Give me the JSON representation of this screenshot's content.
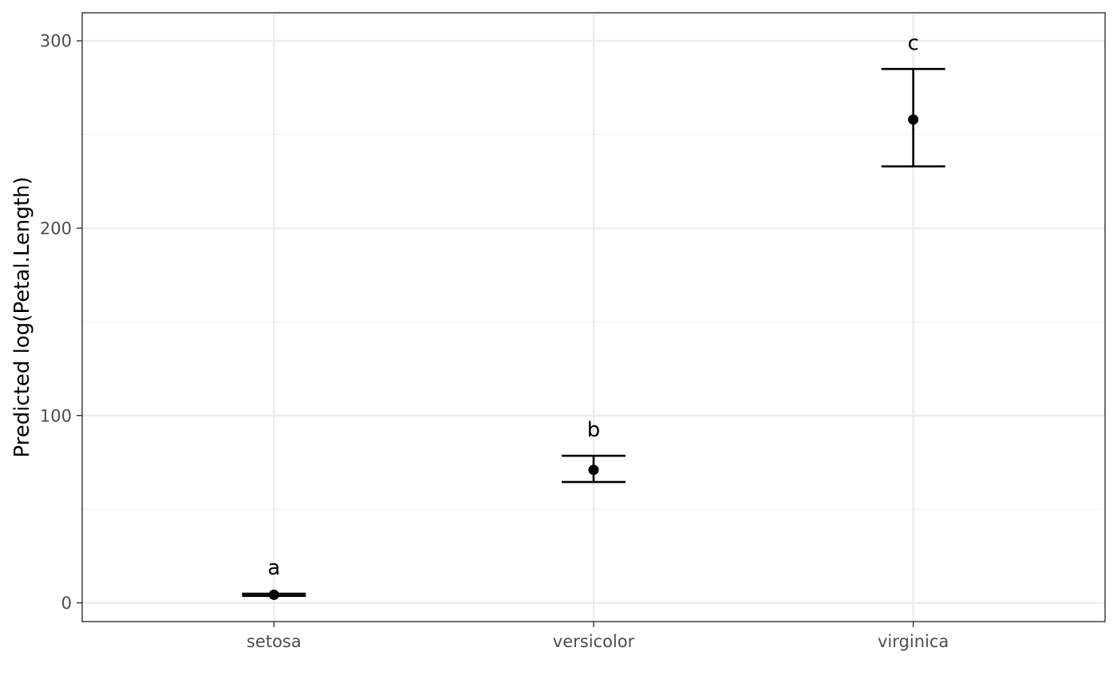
{
  "chart_data": {
    "type": "scatter",
    "title": "",
    "xlabel": "",
    "ylabel": "Predicted log(Petal.Length)",
    "categories": [
      "setosa",
      "versicolor",
      "virginica"
    ],
    "values": [
      4.3,
      71.0,
      258.0
    ],
    "lower": [
      3.7,
      64.5,
      233.0
    ],
    "upper": [
      4.9,
      78.5,
      285.0
    ],
    "group_letters": [
      "a",
      "b",
      "c"
    ],
    "ylim": [
      -10,
      315
    ],
    "yticks": [
      0,
      100,
      200,
      300
    ],
    "ytick_labels": [
      "0",
      "100",
      "200",
      "300"
    ],
    "y_minor_ticks": [
      50,
      150,
      250
    ],
    "grid": true,
    "legend": "none",
    "point_color": "#000000"
  }
}
